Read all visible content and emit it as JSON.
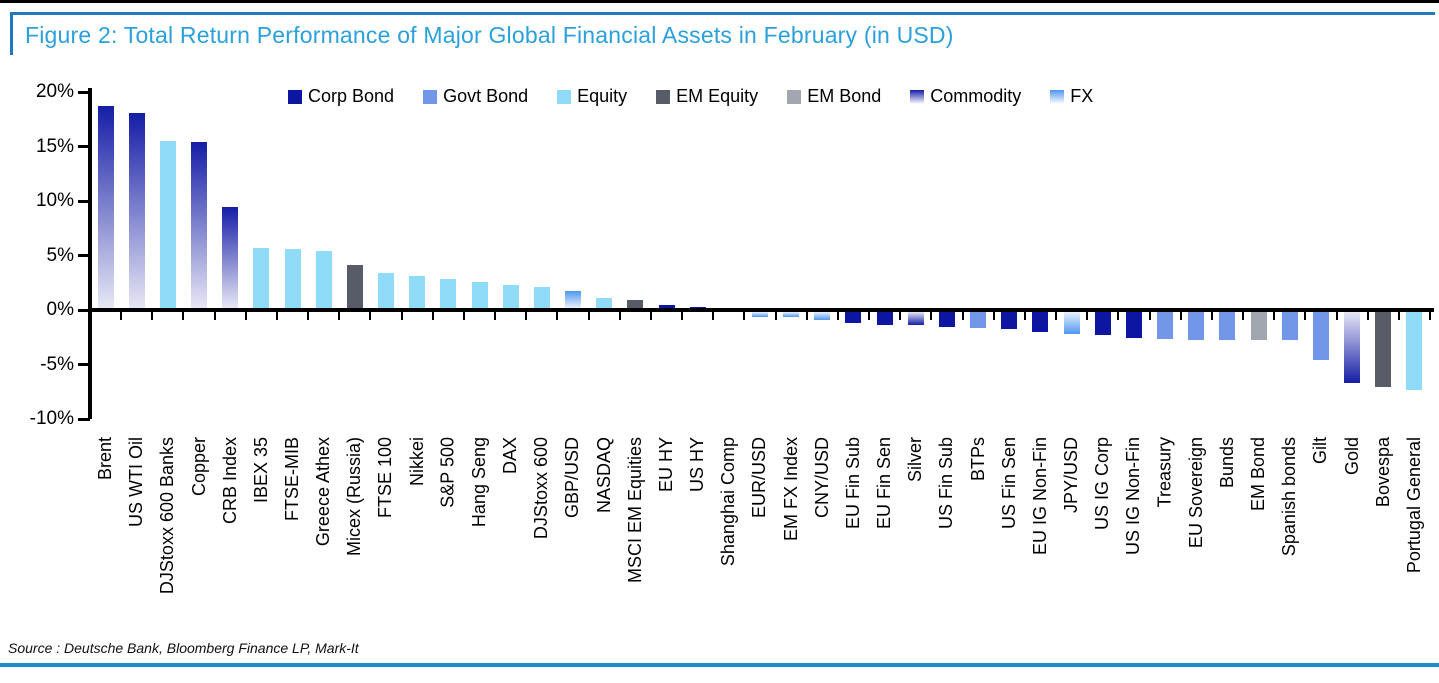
{
  "title": "Figure 2: Total Return Performance of Major Global Financial Assets in February (in USD)",
  "source": "Source : Deutsche Bank, Bloomberg Finance LP, Mark-It",
  "colors": {
    "title_text": "#2BA0DA",
    "title_border": "#2178C0",
    "bottom_rule": "#1F8DCD",
    "axis": "#000000"
  },
  "chart_data": {
    "type": "bar",
    "title": "Total Return Performance of Major Global Financial Assets in February (in USD)",
    "xlabel": "",
    "ylabel": "",
    "ylim": [
      -10,
      20
    ],
    "grid": false,
    "legend_position": "top-center",
    "yticks": [
      20,
      15,
      10,
      5,
      0,
      -5,
      -10
    ],
    "ytick_labels": [
      "20%",
      "15%",
      "10%",
      "5%",
      "0%",
      "-5%",
      "-10%"
    ],
    "legend": [
      "Corp Bond",
      "Govt Bond",
      "Equity",
      "EM Equity",
      "EM Bond",
      "Commodity",
      "FX"
    ],
    "group_styles": {
      "Corp Bond": {
        "fill": "solid",
        "color": "#0D16A0"
      },
      "Govt Bond": {
        "fill": "solid",
        "color": "#7296E8"
      },
      "Equity": {
        "fill": "solid",
        "color": "#90DBF8"
      },
      "EM Equity": {
        "fill": "solid",
        "color": "#575C68"
      },
      "EM Bond": {
        "fill": "solid",
        "color": "#A2A6B0"
      },
      "Commodity": {
        "fill": "gradient",
        "dark": "#151DA6",
        "light": "#E7E7F5"
      },
      "FX": {
        "fill": "gradient",
        "dark": "#4F96EF",
        "light": "#EAF3FD"
      }
    },
    "bars": [
      {
        "label": "Brent",
        "group": "Commodity",
        "value": 18.5
      },
      {
        "label": "US WTI Oil",
        "group": "Commodity",
        "value": 17.9
      },
      {
        "label": "DJStoxx 600 Banks",
        "group": "Equity",
        "value": 15.3
      },
      {
        "label": "Copper",
        "group": "Commodity",
        "value": 15.2
      },
      {
        "label": "CRB Index",
        "group": "Commodity",
        "value": 9.3
      },
      {
        "label": "IBEX 35",
        "group": "Equity",
        "value": 5.5
      },
      {
        "label": "FTSE-MIB",
        "group": "Equity",
        "value": 5.4
      },
      {
        "label": "Greece Athex",
        "group": "Equity",
        "value": 5.2
      },
      {
        "label": "Micex (Russia)",
        "group": "EM Equity",
        "value": 3.9
      },
      {
        "label": "FTSE 100",
        "group": "Equity",
        "value": 3.2
      },
      {
        "label": "Nikkei",
        "group": "Equity",
        "value": 2.9
      },
      {
        "label": "S&P 500",
        "group": "Equity",
        "value": 2.7
      },
      {
        "label": "Hang Seng",
        "group": "Equity",
        "value": 2.4
      },
      {
        "label": "DAX",
        "group": "Equity",
        "value": 2.1
      },
      {
        "label": "DJStoxx 600",
        "group": "Equity",
        "value": 1.9
      },
      {
        "label": "GBP/USD",
        "group": "FX",
        "value": 1.6
      },
      {
        "label": "NASDAQ",
        "group": "Equity",
        "value": 0.9
      },
      {
        "label": "MSCI EM Equities",
        "group": "EM Equity",
        "value": 0.7
      },
      {
        "label": "EU HY",
        "group": "Corp Bond",
        "value": 0.3
      },
      {
        "label": "US HY",
        "group": "Corp Bond",
        "value": 0.1
      },
      {
        "label": "Shanghai Comp",
        "group": "Equity",
        "value": 0.0
      },
      {
        "label": "EUR/USD",
        "group": "FX",
        "value": -0.5
      },
      {
        "label": "EM FX Index",
        "group": "FX",
        "value": -0.5
      },
      {
        "label": "CNY/USD",
        "group": "FX",
        "value": -0.7
      },
      {
        "label": "EU Fin Sub",
        "group": "Corp Bond",
        "value": -1.0
      },
      {
        "label": "EU Fin Sen",
        "group": "Corp Bond",
        "value": -1.2
      },
      {
        "label": "Silver",
        "group": "Commodity",
        "value": -1.2
      },
      {
        "label": "US Fin Sub",
        "group": "Corp Bond",
        "value": -1.4
      },
      {
        "label": "BTPs",
        "group": "Govt Bond",
        "value": -1.5
      },
      {
        "label": "US Fin Sen",
        "group": "Corp Bond",
        "value": -1.6
      },
      {
        "label": "EU IG Non-Fin",
        "group": "Corp Bond",
        "value": -1.8
      },
      {
        "label": "JPY/USD",
        "group": "FX",
        "value": -2.0
      },
      {
        "label": "US IG Corp",
        "group": "Corp Bond",
        "value": -2.1
      },
      {
        "label": "US IG Non-Fin",
        "group": "Corp Bond",
        "value": -2.4
      },
      {
        "label": "Treasury",
        "group": "Govt Bond",
        "value": -2.5
      },
      {
        "label": "EU Sovereign",
        "group": "Govt Bond",
        "value": -2.6
      },
      {
        "label": "Bunds",
        "group": "Govt Bond",
        "value": -2.6
      },
      {
        "label": "EM Bond",
        "group": "EM Bond",
        "value": -2.6
      },
      {
        "label": "Spanish bonds",
        "group": "Govt Bond",
        "value": -2.6
      },
      {
        "label": "Gilt",
        "group": "Govt Bond",
        "value": -4.4
      },
      {
        "label": "Gold",
        "group": "Commodity",
        "value": -6.5
      },
      {
        "label": "Bovespa",
        "group": "EM Equity",
        "value": -6.9
      },
      {
        "label": "Portugal General",
        "group": "Equity",
        "value": -7.2
      }
    ]
  }
}
